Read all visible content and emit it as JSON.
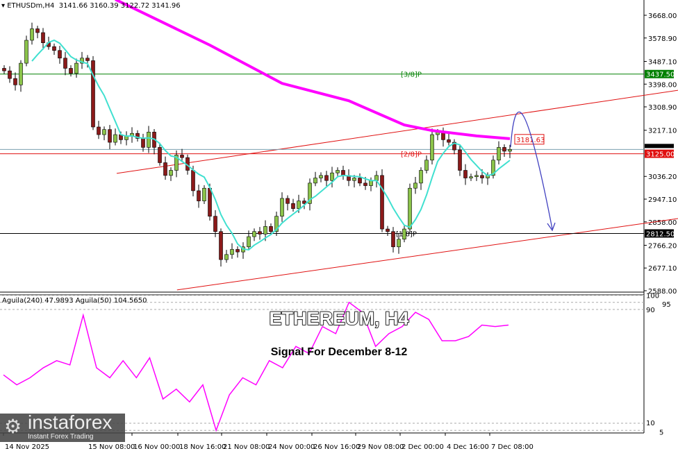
{
  "header": {
    "symbol": "ETHUSDm,H4",
    "ohlc": "3141.66 3160.39 3122.72 3141.96"
  },
  "overlay": {
    "title": "ETHEREUM, H4",
    "subtitle": "Signal For December 8-12"
  },
  "logo": {
    "name": "instaforex",
    "tagline": "Instant Forex Trading"
  },
  "colors": {
    "bull": "#8bc34a",
    "bear": "#8b1a1a",
    "ma_fast": "#40e0d0",
    "ma_slow": "#ff00ff",
    "channel": "#e01010",
    "arrow": "#4040c0"
  },
  "chart_data": [
    {
      "type": "candlestick",
      "ylim": [
        2588,
        3668
      ],
      "y_ticks": [
        "3668.00",
        "3578.90",
        "3487.10",
        "3398.00",
        "3308.90",
        "3217.10",
        "3036.20",
        "2947.10",
        "2858.00",
        "2766.20",
        "2677.10",
        "2588.00"
      ],
      "x_ticks": [
        "14 Nov 2025",
        "15 Nov 08:00",
        "16 Nov 00:00",
        "18 Nov 16:00",
        "21 Nov 08:00",
        "24 Nov 00:00",
        "26 Nov 16:00",
        "29 Nov 08:00",
        "2 Dec 00:00",
        "4 Dec 16:00",
        "7 Dec 08:00"
      ],
      "close": [
        3450,
        3420,
        3395,
        3480,
        3570,
        3615,
        3600,
        3560,
        3545,
        3530,
        3500,
        3460,
        3440,
        3480,
        3500,
        3490,
        3230,
        3200,
        3220,
        3170,
        3200,
        3180,
        3195,
        3205,
        3185,
        3150,
        3210,
        3150,
        3090,
        3040,
        3060,
        3120,
        3110,
        3060,
        2980,
        2940,
        2990,
        2880,
        2820,
        2710,
        2730,
        2750,
        2740,
        2760,
        2800,
        2820,
        2810,
        2840,
        2820,
        2880,
        2950,
        2930,
        2910,
        2940,
        2930,
        3010,
        3030,
        3040,
        3020,
        3050,
        3060,
        3040,
        3020,
        3030,
        3010,
        3000,
        3020,
        3040,
        2830,
        2820,
        2760,
        2790,
        2830,
        2990,
        3010,
        3060,
        3100,
        3200,
        3210,
        3180,
        3170,
        3140,
        3060,
        3030,
        3035,
        3040,
        3030,
        3040,
        3100,
        3150,
        3135,
        3142
      ],
      "ma_slow_points": [
        [
          20,
          3730
        ],
        [
          37,
          3551
        ],
        [
          50,
          3401
        ],
        [
          62,
          3333
        ],
        [
          72,
          3238
        ],
        [
          77,
          3216
        ],
        [
          85,
          3195
        ],
        [
          91,
          3184
        ]
      ],
      "channel_upper": [
        [
          20.25,
          3048
        ],
        [
          121.25,
          3374
        ]
      ],
      "channel_lower": [
        [
          31.1,
          2591
        ],
        [
          121.25,
          2871
        ]
      ],
      "levels": [
        {
          "label": "3437.50",
          "name": "[3/8]P",
          "value": 3437.5,
          "color": "#008000"
        },
        {
          "label": "3125.00",
          "name": "[2/8]P",
          "value": 3125.0,
          "color": "#e01010"
        },
        {
          "label": "2812.50",
          "name": "[1/8]P",
          "value": 2812.5,
          "color": "#000000"
        }
      ],
      "current_price": {
        "label": "3141.96",
        "value": 3141.96
      },
      "ma_slow_label": "3181.63",
      "forecast": "up to ~3280 then down to ~2812"
    },
    {
      "type": "line",
      "legend": "Aguila(240) 47.9893  Aguila(50) 104.5650",
      "ylim": [
        0,
        100
      ],
      "y_ticks": [
        "100",
        "95",
        "90",
        "10",
        "5"
      ],
      "values": [
        44,
        37,
        42,
        49,
        54,
        51,
        86,
        49,
        42,
        54,
        42,
        56,
        27,
        34,
        25,
        37,
        5,
        30,
        42,
        37,
        54,
        49,
        64,
        59,
        78,
        73,
        95,
        88,
        64,
        73,
        78,
        88,
        83,
        68,
        68,
        71,
        79,
        78,
        79
      ]
    }
  ]
}
